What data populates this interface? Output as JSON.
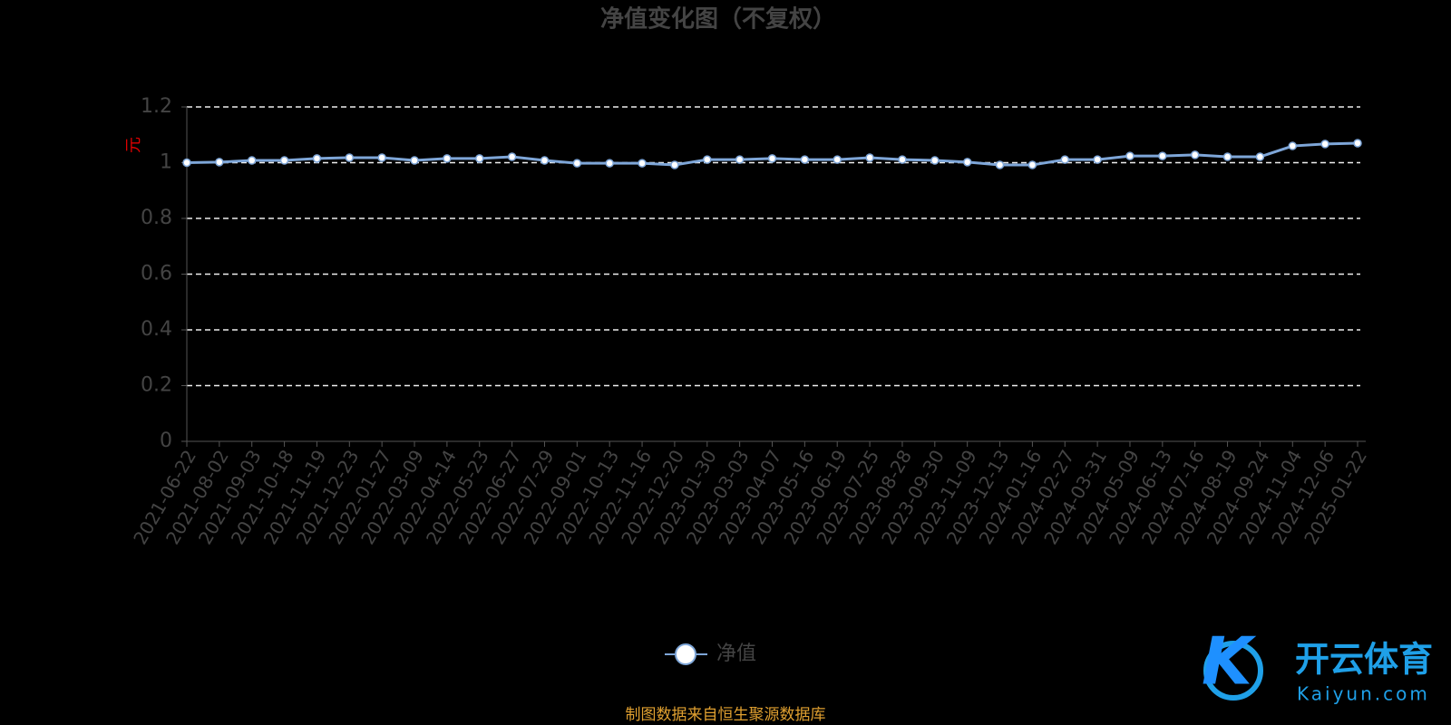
{
  "chart_data": {
    "type": "line",
    "title": "净值变化图（不复权）",
    "y_label": "元",
    "source": "制图数据来自恒生聚源数据库",
    "watermark": {
      "brand": "开云体育",
      "site": "Kaiyun.com"
    },
    "categories": [
      "2021-06-22",
      "2021-08-02",
      "2021-09-03",
      "2021-10-18",
      "2021-11-19",
      "2021-12-23",
      "2022-01-27",
      "2022-03-09",
      "2022-04-14",
      "2022-05-23",
      "2022-06-27",
      "2022-07-29",
      "2022-09-01",
      "2022-10-13",
      "2022-11-16",
      "2022-12-20",
      "2023-01-30",
      "2023-03-03",
      "2023-04-07",
      "2023-05-16",
      "2023-06-19",
      "2023-07-25",
      "2023-08-28",
      "2023-09-30",
      "2023-11-09",
      "2023-12-13",
      "2024-01-16",
      "2024-02-27",
      "2024-03-31",
      "2024-05-09",
      "2024-06-13",
      "2024-07-16",
      "2024-08-19",
      "2024-09-24",
      "2024-11-04",
      "2024-12-06",
      "2025-01-22"
    ],
    "series": [
      {
        "name": "净值",
        "color": "#7ea6d8",
        "values": [
          1.0,
          1.002,
          1.008,
          1.008,
          1.015,
          1.018,
          1.018,
          1.008,
          1.015,
          1.015,
          1.021,
          1.008,
          0.998,
          0.998,
          0.998,
          0.992,
          1.011,
          1.011,
          1.015,
          1.011,
          1.011,
          1.018,
          1.011,
          1.008,
          1.002,
          0.992,
          0.992,
          1.011,
          1.011,
          1.024,
          1.024,
          1.028,
          1.021,
          1.021,
          1.06,
          1.067,
          1.07
        ]
      }
    ],
    "ylim": [
      0,
      1.2
    ],
    "yticks": [
      0,
      0.2,
      0.4,
      0.6,
      0.8,
      1,
      1.2
    ],
    "grid": true
  }
}
